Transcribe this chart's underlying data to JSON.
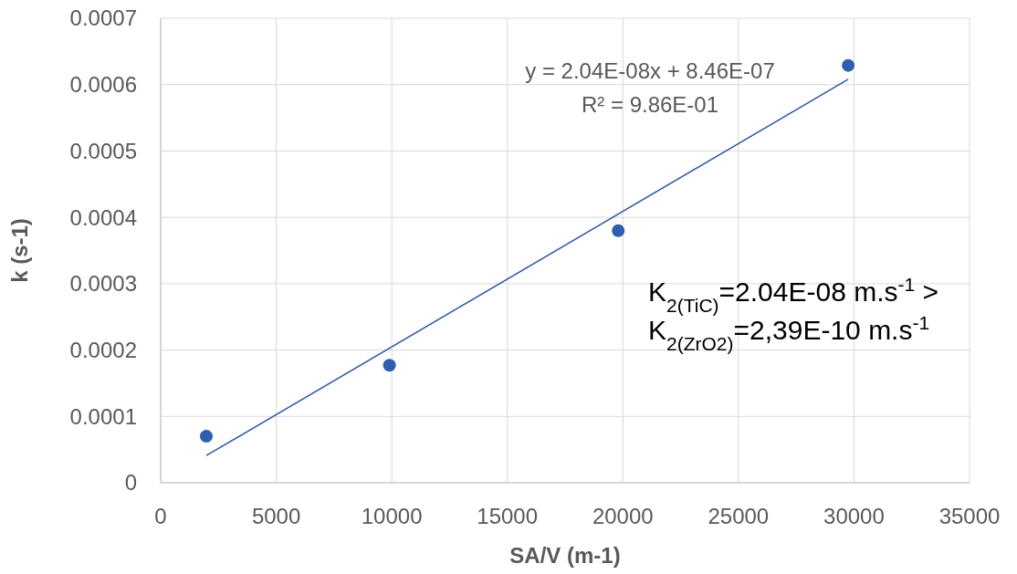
{
  "chart_data": {
    "type": "scatter",
    "xlabel": "SA/V (m-1)",
    "ylabel": "k (s-1)",
    "xlim": [
      0,
      35000
    ],
    "xticks": [
      0,
      5000,
      10000,
      15000,
      20000,
      25000,
      30000,
      35000
    ],
    "ylim": [
      0,
      0.0007
    ],
    "yticks": [
      0,
      0.0001,
      0.0002,
      0.0003,
      0.0004,
      0.0005,
      0.0006,
      0.0007
    ],
    "grid": true,
    "marker": "circle",
    "series": [
      {
        "color": "#2f5eae",
        "x": [
          1975,
          9900,
          19800,
          29750
        ],
        "values": [
          7e-05,
          0.000177,
          0.00038,
          0.000629
        ]
      },
      {
        "type": "line",
        "color": "#2e55a5",
        "marker": "none",
        "x": [
          1975,
          29750
        ],
        "values": [
          4.1e-05,
          0.000608
        ]
      }
    ],
    "annotations": [
      "y = 2.04E-08x + 8.46E-07",
      "R² = 9.86E-01",
      "K$_{2(TiC)}$=2.04E-08 m.s$^{-1}$ >",
      "K$_{2(ZrO2)}$=2,39E-10 m.s$^{-1}$"
    ]
  }
}
